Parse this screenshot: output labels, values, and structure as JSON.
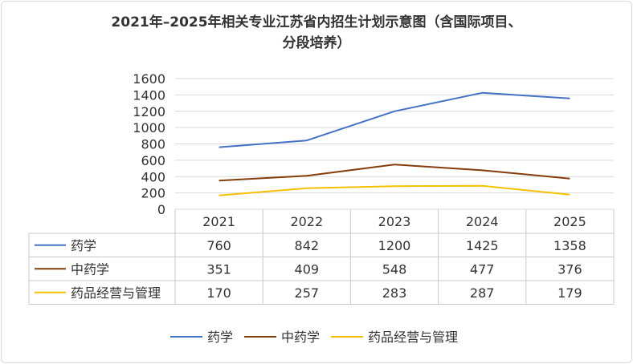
{
  "title_line1": "2021年–2025年相关专业江苏省内招生计划示意图（含国际项目、",
  "title_line2": "分段培养）",
  "chart_data": {
    "type": "line",
    "title": "2021年–2025年相关专业江苏省内招生计划示意图（含国际项目、分段培养）",
    "xlabel": "",
    "ylabel": "",
    "categories": [
      "2021",
      "2022",
      "2023",
      "2024",
      "2025"
    ],
    "ylim": [
      0,
      1600
    ],
    "yticks": [
      0,
      200,
      400,
      600,
      800,
      1000,
      1200,
      1400,
      1600
    ],
    "grid": true,
    "legend_position": "bottom",
    "data_table": true,
    "series": [
      {
        "name": "药学",
        "color": "#4472C4",
        "values": [
          760,
          842,
          1200,
          1425,
          1358
        ]
      },
      {
        "name": "中药学",
        "color": "#843C0C",
        "values": [
          351,
          409,
          548,
          477,
          376
        ]
      },
      {
        "name": "药品经营与管理",
        "color": "#F5C100",
        "values": [
          170,
          257,
          283,
          287,
          179
        ]
      }
    ]
  }
}
